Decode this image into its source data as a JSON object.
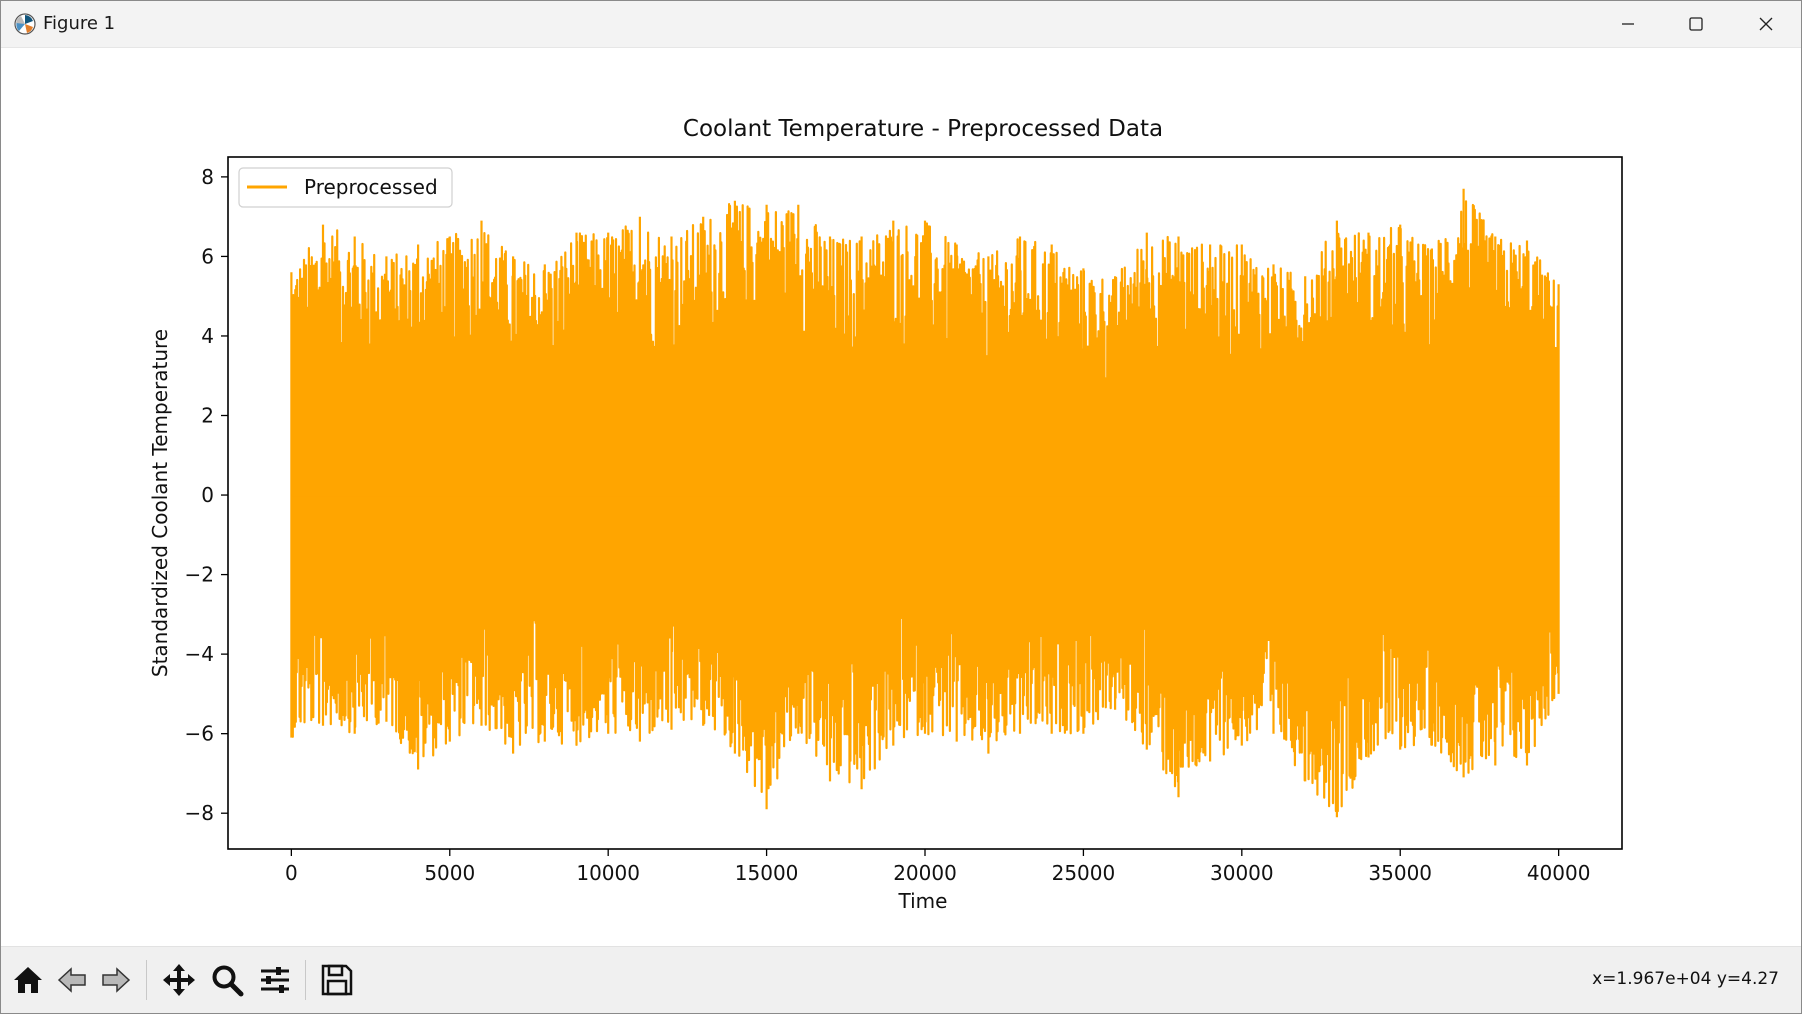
{
  "window": {
    "title": "Figure 1"
  },
  "status": {
    "coordinates": "x=1.967e+04 y=4.27"
  },
  "toolbar": {
    "tools": [
      "home-icon",
      "back-arrow-icon",
      "forward-arrow-icon",
      "pan-move-icon",
      "zoom-magnifier-icon",
      "configure-subplots-icon",
      "save-disk-icon"
    ]
  },
  "colors": {
    "series": "#ffa500",
    "axes": "#000000",
    "text": "#111111"
  },
  "chart_data": {
    "type": "line",
    "title": "Coolant Temperature - Preprocessed Data",
    "xlabel": "Time",
    "ylabel": "Standardized Coolant Temperature",
    "xlim": [
      -2000,
      42000
    ],
    "ylim": [
      -8.9,
      8.5
    ],
    "xticks": [
      0,
      5000,
      10000,
      15000,
      20000,
      25000,
      30000,
      35000,
      40000
    ],
    "xtick_labels": [
      "0",
      "5000",
      "10000",
      "15000",
      "20000",
      "25000",
      "30000",
      "35000",
      "40000"
    ],
    "yticks": [
      8,
      6,
      4,
      2,
      0,
      -2,
      -4,
      -6,
      -8
    ],
    "ytick_labels": [
      "8",
      "6",
      "4",
      "2",
      "0",
      "−2",
      "−4",
      "−6",
      "−8"
    ],
    "legend": {
      "position": "upper-left"
    },
    "grid": false,
    "series": [
      {
        "name": "Preprocessed",
        "color": "#ffa500",
        "x": [
          0,
          1000,
          2000,
          3000,
          4000,
          5000,
          6000,
          7000,
          8000,
          9000,
          10000,
          11000,
          12000,
          13000,
          14000,
          15000,
          16000,
          17000,
          18000,
          19000,
          20000,
          21000,
          22000,
          23000,
          24000,
          25000,
          26000,
          27000,
          28000,
          29000,
          30000,
          31000,
          32000,
          33000,
          34000,
          35000,
          36000,
          37000,
          38000,
          39000,
          40000
        ],
        "upper": [
          5.6,
          6.8,
          6.5,
          6.0,
          6.3,
          6.5,
          6.9,
          6.0,
          5.8,
          6.6,
          6.6,
          7.0,
          6.5,
          7.0,
          7.4,
          7.3,
          7.3,
          6.5,
          6.5,
          6.9,
          6.9,
          6.3,
          6.0,
          6.5,
          6.3,
          5.7,
          5.5,
          6.6,
          6.5,
          6.3,
          6.3,
          5.8,
          5.5,
          6.9,
          6.6,
          6.8,
          6.2,
          7.7,
          6.5,
          6.4,
          5.3
        ],
        "lower": [
          -6.1,
          -5.8,
          -6.0,
          -5.7,
          -6.9,
          -6.2,
          -5.8,
          -6.5,
          -6.2,
          -6.3,
          -6.0,
          -6.2,
          -5.9,
          -5.8,
          -6.5,
          -7.9,
          -6.0,
          -7.2,
          -7.4,
          -6.3,
          -6.0,
          -6.2,
          -6.5,
          -6.0,
          -6.0,
          -6.0,
          -5.4,
          -6.4,
          -7.6,
          -6.7,
          -6.3,
          -6.0,
          -7.2,
          -8.1,
          -6.6,
          -6.4,
          -6.3,
          -7.1,
          -6.8,
          -6.8,
          -5.0
        ]
      }
    ]
  }
}
